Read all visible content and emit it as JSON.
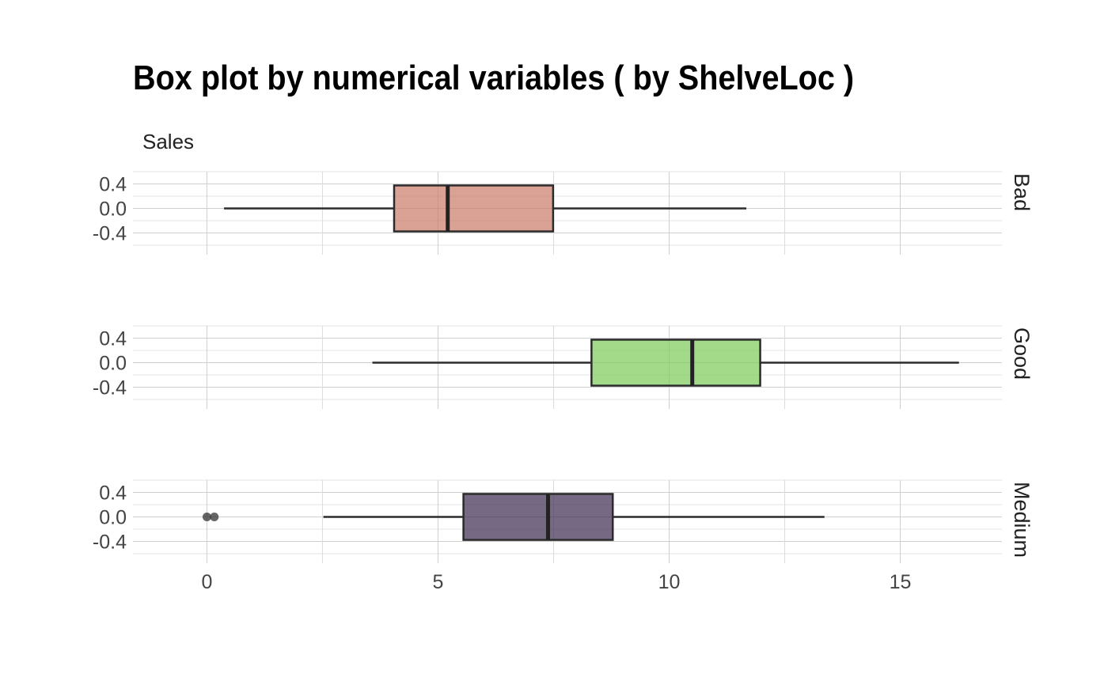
{
  "chart_data": {
    "type": "boxplot",
    "title": "Box plot by numerical variables ( by ShelveLoc )",
    "subtitle": "Sales",
    "x": {
      "range": [
        -1.6,
        17.2
      ],
      "ticks": [
        0,
        5,
        10,
        15
      ],
      "tick_labels": [
        "0",
        "5",
        "10",
        "15"
      ]
    },
    "y": {
      "range": [
        -0.6,
        0.6
      ],
      "ticks": [
        0.4,
        0.0,
        -0.4
      ],
      "tick_labels": [
        "0.4",
        "0.0",
        "-0.4"
      ]
    },
    "grid": true,
    "panels": [
      {
        "label": "Bad",
        "color": "#c97b68",
        "whisker_low": 0.37,
        "q1": 4.05,
        "median": 5.21,
        "q3": 7.49,
        "whisker_high": 11.67,
        "outliers": []
      },
      {
        "label": "Good",
        "color": "#7ccb57",
        "whisker_low": 3.58,
        "q1": 8.32,
        "median": 10.5,
        "q3": 11.97,
        "whisker_high": 16.27,
        "outliers": []
      },
      {
        "label": "Medium",
        "color": "#3b2a4e",
        "whisker_low": 2.52,
        "q1": 5.55,
        "median": 7.38,
        "q3": 8.78,
        "whisker_high": 13.36,
        "outliers": [
          0.0,
          0.16
        ]
      }
    ]
  }
}
